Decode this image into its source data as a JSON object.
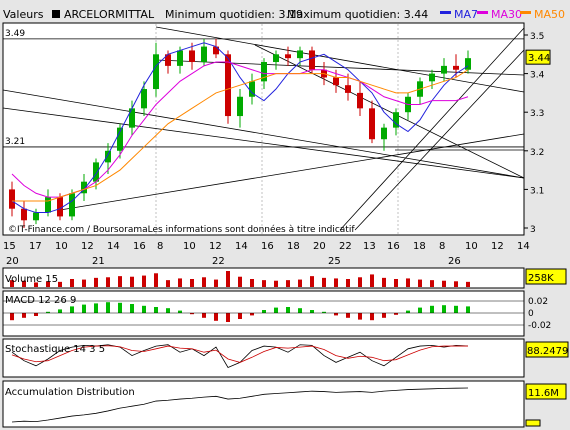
{
  "header": {
    "valeurs_label": "Valeurs",
    "ticker": "ARCELORMITTAL",
    "min_text": "Minimum quotidien: 3.19",
    "max_text": "Maximum quotidien: 3.44",
    "ma7_label": "MA7",
    "ma30_label": "MA30",
    "ma50_label": "MA50"
  },
  "colors": {
    "background": "#e6e6e6",
    "panel": "#ffffff",
    "candle_up": "#00aa00",
    "candle_down": "#cc0000",
    "ma7": "#2222dd",
    "ma30": "#dd00dd",
    "ma50": "#ff8800",
    "badge": "#ffff00",
    "volume": "#cc0000",
    "macd_pos": "#00bb00",
    "macd_neg": "#cc0000",
    "trendline": "#000000"
  },
  "footer_note": "©IT-Finance.com / BoursoramaLes informations sont données à titre indicatif",
  "chart_data": [
    {
      "type": "candlestick",
      "title": "ARCELORMITTAL",
      "ylim": [
        3.0,
        3.5
      ],
      "y_ticks": [
        "3.5",
        "3.4",
        "3.3",
        "3.2",
        "3.1",
        "3"
      ],
      "x_day_ticks": [
        "15",
        "17",
        "10",
        "12",
        "14",
        "16",
        "8",
        "10",
        "12",
        "14",
        "16",
        "18",
        "20",
        "22",
        "13",
        "16",
        "18",
        "8",
        "10",
        "12",
        "14",
        "16",
        "17"
      ],
      "x_hour_ticks": [
        "20",
        "21",
        "22",
        "25",
        "26"
      ],
      "hlines": [
        {
          "label": "3.49",
          "value": 3.49
        },
        {
          "label": "3.21",
          "value": 3.21
        }
      ],
      "last_value": "3.44",
      "series": [
        {
          "name": "MA7",
          "values": [
            3.07,
            3.05,
            3.04,
            3.04,
            3.05,
            3.07,
            3.1,
            3.14,
            3.19,
            3.25,
            3.31,
            3.37,
            3.42,
            3.45,
            3.46,
            3.47,
            3.48,
            3.47,
            3.44,
            3.39,
            3.35,
            3.33,
            3.36,
            3.4,
            3.43,
            3.44,
            3.45,
            3.43,
            3.41,
            3.38,
            3.35,
            3.3,
            3.27,
            3.25,
            3.28,
            3.33,
            3.37,
            3.4,
            3.42
          ]
        },
        {
          "name": "MA30",
          "values": [
            3.14,
            3.11,
            3.09,
            3.08,
            3.08,
            3.09,
            3.1,
            3.12,
            3.15,
            3.19,
            3.24,
            3.28,
            3.32,
            3.35,
            3.38,
            3.4,
            3.42,
            3.43,
            3.43,
            3.42,
            3.41,
            3.4,
            3.4,
            3.4,
            3.4,
            3.41,
            3.41,
            3.4,
            3.39,
            3.38,
            3.36,
            3.34,
            3.33,
            3.32,
            3.32,
            3.33,
            3.33,
            3.33,
            3.34
          ]
        },
        {
          "name": "MA50",
          "values": [
            3.07,
            3.07,
            3.07,
            3.07,
            3.08,
            3.09,
            3.1,
            3.11,
            3.13,
            3.15,
            3.18,
            3.21,
            3.24,
            3.27,
            3.29,
            3.31,
            3.33,
            3.35,
            3.36,
            3.37,
            3.38,
            3.39,
            3.4,
            3.4,
            3.4,
            3.4,
            3.4,
            3.39,
            3.39,
            3.38,
            3.37,
            3.36,
            3.35,
            3.35,
            3.36,
            3.37,
            3.38,
            3.39,
            3.41
          ]
        }
      ],
      "candles": [
        {
          "o": 3.1,
          "h": 3.12,
          "l": 3.03,
          "c": 3.05
        },
        {
          "o": 3.05,
          "h": 3.07,
          "l": 3.0,
          "c": 3.02
        },
        {
          "o": 3.02,
          "h": 3.05,
          "l": 3.01,
          "c": 3.04
        },
        {
          "o": 3.04,
          "h": 3.1,
          "l": 3.03,
          "c": 3.08
        },
        {
          "o": 3.08,
          "h": 3.09,
          "l": 3.02,
          "c": 3.03
        },
        {
          "o": 3.03,
          "h": 3.1,
          "l": 3.02,
          "c": 3.09
        },
        {
          "o": 3.09,
          "h": 3.14,
          "l": 3.07,
          "c": 3.12
        },
        {
          "o": 3.12,
          "h": 3.18,
          "l": 3.1,
          "c": 3.17
        },
        {
          "o": 3.17,
          "h": 3.22,
          "l": 3.14,
          "c": 3.2
        },
        {
          "o": 3.2,
          "h": 3.27,
          "l": 3.18,
          "c": 3.26
        },
        {
          "o": 3.26,
          "h": 3.33,
          "l": 3.24,
          "c": 3.31
        },
        {
          "o": 3.31,
          "h": 3.38,
          "l": 3.29,
          "c": 3.36
        },
        {
          "o": 3.36,
          "h": 3.48,
          "l": 3.34,
          "c": 3.45
        },
        {
          "o": 3.45,
          "h": 3.46,
          "l": 3.4,
          "c": 3.42
        },
        {
          "o": 3.42,
          "h": 3.47,
          "l": 3.4,
          "c": 3.46
        },
        {
          "o": 3.46,
          "h": 3.48,
          "l": 3.41,
          "c": 3.43
        },
        {
          "o": 3.43,
          "h": 3.49,
          "l": 3.42,
          "c": 3.47
        },
        {
          "o": 3.47,
          "h": 3.49,
          "l": 3.44,
          "c": 3.45
        },
        {
          "o": 3.45,
          "h": 3.46,
          "l": 3.27,
          "c": 3.29
        },
        {
          "o": 3.29,
          "h": 3.36,
          "l": 3.26,
          "c": 3.34
        },
        {
          "o": 3.34,
          "h": 3.4,
          "l": 3.32,
          "c": 3.38
        },
        {
          "o": 3.38,
          "h": 3.44,
          "l": 3.36,
          "c": 3.43
        },
        {
          "o": 3.43,
          "h": 3.46,
          "l": 3.41,
          "c": 3.45
        },
        {
          "o": 3.45,
          "h": 3.47,
          "l": 3.42,
          "c": 3.44
        },
        {
          "o": 3.44,
          "h": 3.47,
          "l": 3.42,
          "c": 3.46
        },
        {
          "o": 3.46,
          "h": 3.47,
          "l": 3.4,
          "c": 3.41
        },
        {
          "o": 3.41,
          "h": 3.43,
          "l": 3.37,
          "c": 3.39
        },
        {
          "o": 3.39,
          "h": 3.41,
          "l": 3.35,
          "c": 3.37
        },
        {
          "o": 3.37,
          "h": 3.4,
          "l": 3.33,
          "c": 3.35
        },
        {
          "o": 3.35,
          "h": 3.38,
          "l": 3.29,
          "c": 3.31
        },
        {
          "o": 3.31,
          "h": 3.33,
          "l": 3.22,
          "c": 3.23
        },
        {
          "o": 3.23,
          "h": 3.27,
          "l": 3.2,
          "c": 3.26
        },
        {
          "o": 3.26,
          "h": 3.31,
          "l": 3.24,
          "c": 3.3
        },
        {
          "o": 3.3,
          "h": 3.35,
          "l": 3.28,
          "c": 3.34
        },
        {
          "o": 3.34,
          "h": 3.39,
          "l": 3.32,
          "c": 3.38
        },
        {
          "o": 3.38,
          "h": 3.41,
          "l": 3.36,
          "c": 3.4
        },
        {
          "o": 3.4,
          "h": 3.44,
          "l": 3.38,
          "c": 3.42
        },
        {
          "o": 3.42,
          "h": 3.45,
          "l": 3.39,
          "c": 3.41
        },
        {
          "o": 3.41,
          "h": 3.46,
          "l": 3.4,
          "c": 3.44
        }
      ]
    },
    {
      "type": "bar",
      "title": "Volume 15",
      "last_value": "258K",
      "values": [
        60,
        55,
        40,
        50,
        45,
        70,
        65,
        80,
        85,
        95,
        90,
        100,
        120,
        60,
        75,
        70,
        85,
        65,
        140,
        90,
        70,
        60,
        55,
        60,
        65,
        95,
        80,
        75,
        70,
        85,
        110,
        80,
        70,
        75,
        65,
        60,
        55,
        50,
        45
      ]
    },
    {
      "type": "bar",
      "title": "MACD 12 26 9",
      "y_ticks": [
        "0.02",
        "0",
        "-0.02"
      ],
      "values": [
        -0.012,
        -0.008,
        -0.005,
        0.002,
        0.006,
        0.011,
        0.014,
        0.016,
        0.018,
        0.017,
        0.015,
        0.012,
        0.01,
        0.008,
        0.004,
        -0.002,
        -0.008,
        -0.013,
        -0.015,
        -0.01,
        -0.004,
        0.005,
        0.009,
        0.01,
        0.008,
        0.005,
        0.002,
        -0.004,
        -0.008,
        -0.011,
        -0.012,
        -0.008,
        -0.003,
        0.004,
        0.009,
        0.012,
        0.013,
        0.012,
        0.011
      ]
    },
    {
      "type": "line",
      "title": "Stochastique 14 3 5",
      "last_value": "88.2479",
      "series": [
        {
          "name": "K",
          "values": [
            70,
            45,
            30,
            50,
            75,
            85,
            90,
            88,
            92,
            85,
            60,
            75,
            88,
            92,
            70,
            80,
            60,
            85,
            25,
            40,
            75,
            88,
            85,
            70,
            92,
            90,
            60,
            40,
            55,
            70,
            45,
            30,
            55,
            80,
            88,
            90,
            85,
            90,
            88
          ]
        },
        {
          "name": "D",
          "values": [
            62,
            50,
            42,
            45,
            60,
            75,
            85,
            88,
            89,
            86,
            75,
            72,
            80,
            88,
            82,
            80,
            70,
            76,
            50,
            40,
            55,
            72,
            84,
            82,
            85,
            88,
            78,
            60,
            52,
            58,
            55,
            45,
            48,
            62,
            76,
            86,
            88,
            88,
            88
          ]
        }
      ]
    },
    {
      "type": "line",
      "title": "Accumulation Distribution",
      "last_value": "11.6M",
      "values": [
        3,
        3.2,
        3.1,
        3.5,
        4.0,
        4.5,
        4.8,
        5.2,
        5.8,
        6.5,
        7.0,
        7.5,
        8.3,
        8.5,
        8.8,
        9.0,
        9.3,
        9.5,
        8.8,
        9.0,
        9.5,
        10.0,
        10.2,
        10.4,
        10.6,
        10.8,
        10.7,
        10.5,
        10.6,
        10.7,
        10.5,
        10.8,
        11.0,
        11.2,
        11.3,
        11.4,
        11.5,
        11.55,
        11.6
      ]
    }
  ]
}
